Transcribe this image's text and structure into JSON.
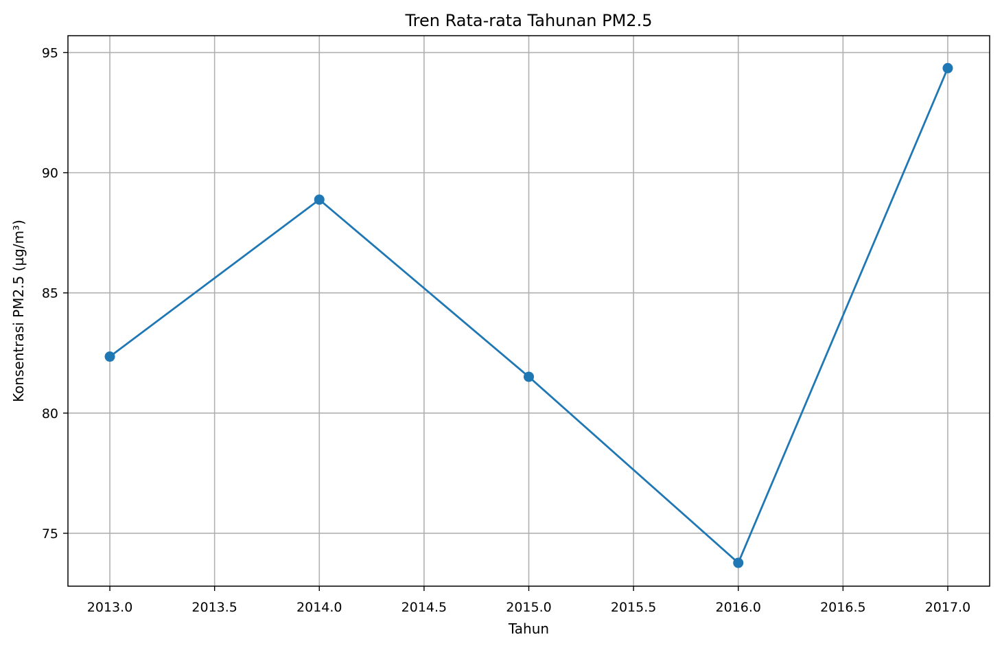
{
  "chart_data": {
    "type": "line",
    "title": "Tren Rata-rata Tahunan PM2.5",
    "xlabel": "Tahun",
    "ylabel": "Konsentrasi PM2.5 (µg/m³)",
    "x": [
      2013,
      2014,
      2015,
      2016,
      2017
    ],
    "series": [
      {
        "values": [
          82.35,
          88.88,
          81.51,
          73.77,
          94.35
        ]
      }
    ],
    "xlim": [
      2012.8,
      2017.2
    ],
    "ylim": [
      72.8,
      95.7
    ],
    "xticks": [
      "2013.0",
      "2013.5",
      "2014.0",
      "2014.5",
      "2015.0",
      "2015.5",
      "2016.0",
      "2016.5",
      "2017.0"
    ],
    "xtick_values": [
      2013.0,
      2013.5,
      2014.0,
      2014.5,
      2015.0,
      2015.5,
      2016.0,
      2016.5,
      2017.0
    ],
    "yticks": [
      "75",
      "80",
      "85",
      "90",
      "95"
    ],
    "ytick_values": [
      75,
      80,
      85,
      90,
      95
    ],
    "grid": true,
    "marker": "circle",
    "line_color": "#1f77b4",
    "grid_color": "#b0b0b0"
  }
}
